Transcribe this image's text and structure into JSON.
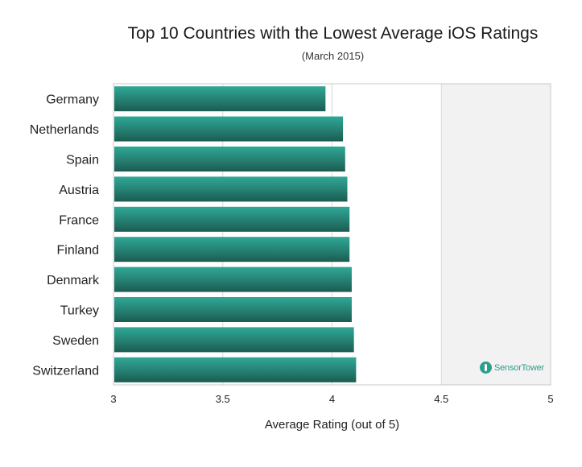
{
  "chart_data": {
    "type": "bar",
    "orientation": "horizontal",
    "title": "Top 10 Countries with the Lowest Average iOS Ratings",
    "subtitle": "(March 2015)",
    "xlabel": "Average Rating (out of 5)",
    "ylabel": "",
    "xlim": [
      3,
      5
    ],
    "x_ticks": [
      "3",
      "3.5",
      "4",
      "4.5",
      "5"
    ],
    "categories": [
      "Germany",
      "Netherlands",
      "Spain",
      "Austria",
      "France",
      "Finland",
      "Denmark",
      "Turkey",
      "Sweden",
      "Switzerland"
    ],
    "values": [
      3.97,
      4.05,
      4.06,
      4.07,
      4.08,
      4.08,
      4.09,
      4.09,
      4.1,
      4.11
    ],
    "grid": true,
    "bar_color_top": "#2fa896",
    "bar_color_bottom": "#1b5b50",
    "plot_background": "#f2f2f2"
  },
  "watermark": {
    "brand_part1": "Sensor",
    "brand_part2": "Tower",
    "icon": "sensortower-logo-icon"
  }
}
